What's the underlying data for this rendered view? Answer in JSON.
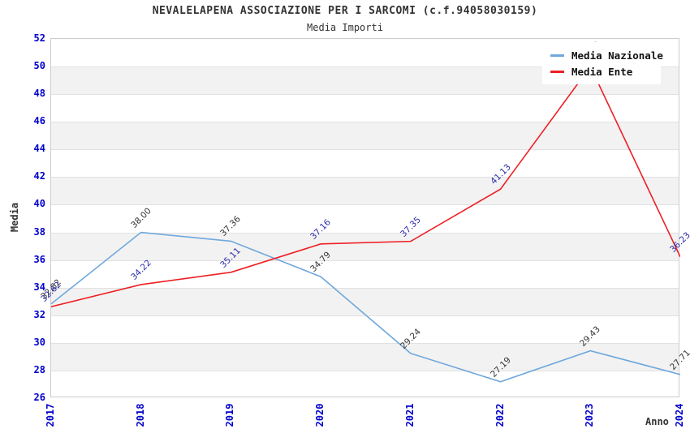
{
  "title": "NEVALELAPENA ASSOCIAZIONE PER I SARCOMI (c.f.94058030159)",
  "subtitle": "Media Importi",
  "chart_data": {
    "type": "line",
    "categories": [
      "2017",
      "2018",
      "2019",
      "2020",
      "2021",
      "2022",
      "2023",
      "2024"
    ],
    "series": [
      {
        "name": "Media Nazionale",
        "color": "#6fa8dc",
        "label_color": "#333333",
        "values": [
          32.82,
          38.0,
          37.36,
          34.79,
          29.24,
          27.19,
          29.43,
          27.71
        ]
      },
      {
        "name": "Media Ente",
        "color": "#ed1f24",
        "label_color": "#2b2ba8",
        "values": [
          32.62,
          34.22,
          35.11,
          37.16,
          37.35,
          41.13,
          50.0,
          36.23
        ]
      }
    ],
    "xlabel": "Anno",
    "ylabel": "Media",
    "ylim": [
      26,
      52
    ],
    "ytick_step": 2,
    "grid": "horizontal-bands-alternating",
    "legend_position": "top-right",
    "band_colors": {
      "even": "#ffffff",
      "odd": "#f2f2f2"
    },
    "gridline_color": "#e1e1e1",
    "tick_label_color": "#0000cc",
    "note": "2023 Media Ente label hidden behind legend in source; value estimated from line apex"
  }
}
